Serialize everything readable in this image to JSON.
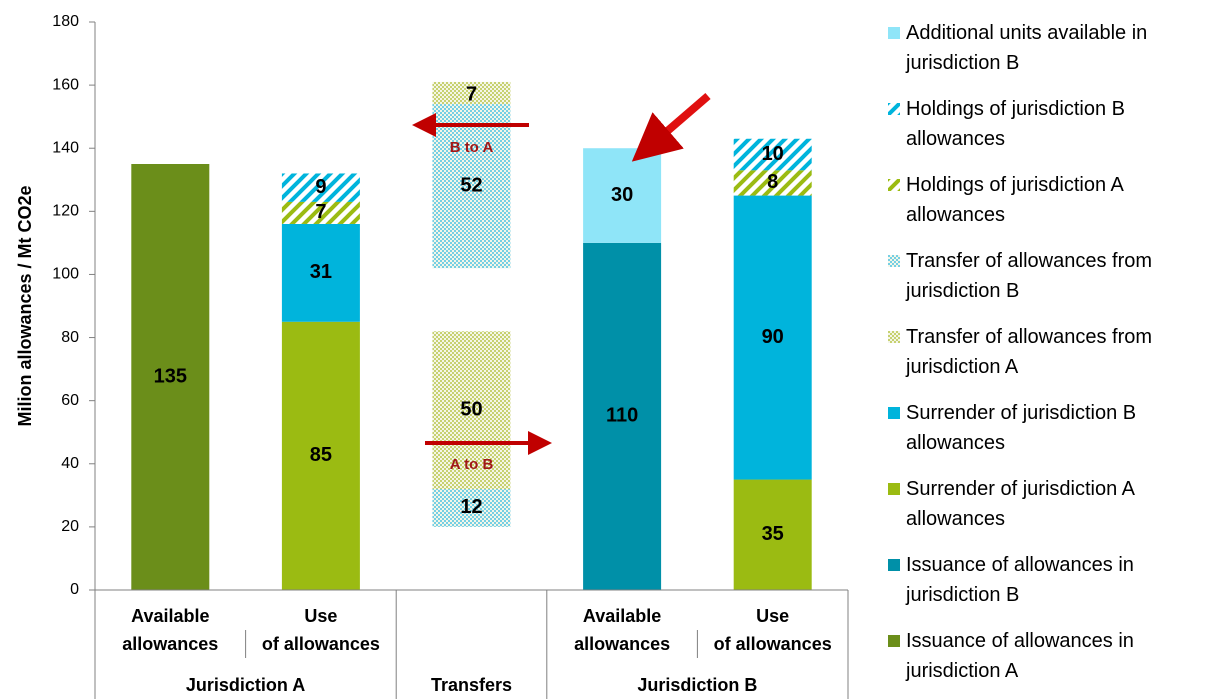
{
  "chart_data": {
    "type": "bar",
    "stacked": true,
    "y_label": "Milion allowances / Mt CO2e",
    "categories": [
      "Available allowances",
      "Use of allowances",
      null,
      "Available allowances",
      "Use of allowances"
    ],
    "groups": [
      {
        "label": "Jurisdiction A",
        "span": 2
      },
      {
        "label": "Transfers",
        "span": 1
      },
      {
        "label": "Jurisdiction B",
        "span": 2
      }
    ],
    "ylim": [
      0,
      180
    ],
    "yticks": [
      0,
      20,
      40,
      60,
      80,
      100,
      120,
      140,
      160,
      180
    ],
    "grid": false,
    "legend": "right",
    "series": [
      {
        "name": "Issuance of allowances in jurisdiction A",
        "color": "#6b8e1a",
        "pattern": "solid",
        "values": [
          135,
          null,
          null,
          null,
          null
        ]
      },
      {
        "name": "Issuance of allowances in jurisdiction B",
        "color": "#0090a8",
        "pattern": "solid",
        "values": [
          null,
          null,
          null,
          110,
          null
        ]
      },
      {
        "name": "Surrender of jurisdiction A allowances",
        "color": "#9bbb12",
        "pattern": "solid",
        "values": [
          null,
          85,
          null,
          null,
          35
        ]
      },
      {
        "name": "Surrender of jurisdiction B allowances",
        "color": "#00b4dc",
        "pattern": "solid",
        "values": [
          null,
          31,
          null,
          null,
          90
        ]
      },
      {
        "name": "Transfer of allowances from jurisdiction A",
        "color": "#b9c64a",
        "pattern": "dots",
        "values": [
          null,
          null,
          null,
          null,
          null
        ]
      },
      {
        "name": "Transfer of allowances from jurisdiction B",
        "color": "#4cc3e4",
        "pattern": "dots",
        "values": [
          null,
          null,
          null,
          null,
          null
        ]
      },
      {
        "name": "Holdings of jurisdiction A allowances",
        "color": "#9bbb12",
        "pattern": "stripes",
        "values": [
          null,
          7,
          null,
          null,
          8
        ]
      },
      {
        "name": "Holdings of jurisdiction B allowances",
        "color": "#00b4dc",
        "pattern": "stripes",
        "values": [
          null,
          9,
          null,
          null,
          10
        ]
      },
      {
        "name": "Additional units available in jurisdiction B",
        "color": "#8fe5f8",
        "pattern": "solid",
        "values": [
          null,
          null,
          null,
          30,
          null
        ]
      }
    ],
    "transfers": [
      {
        "label": "A to B",
        "start": 20,
        "values": [
          50,
          12
        ]
      },
      {
        "label": "B to A",
        "start": 102,
        "values": [
          7,
          52
        ]
      }
    ]
  }
}
